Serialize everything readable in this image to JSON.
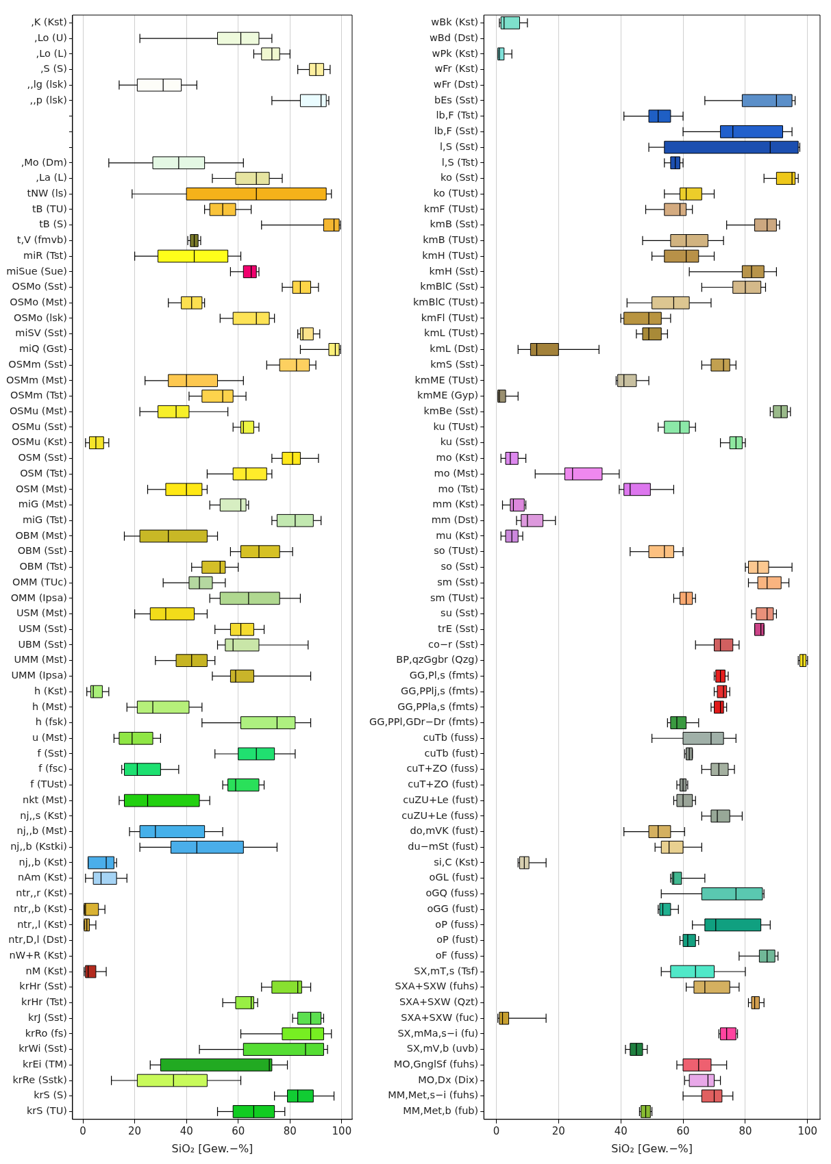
{
  "chart_data": [
    {
      "type": "box",
      "orientation": "horizontal",
      "xlabel": "SiO₂ [Gew.−%]",
      "xlim": [
        -4,
        104
      ],
      "xticks": [
        0,
        20,
        40,
        60,
        80,
        100
      ],
      "grid": "x",
      "categories": [
        ",K (Kst)",
        ",Lo (U)",
        ",Lo (L)",
        ",S (S)",
        ",,lg (lsk)",
        ",,p (lsk)",
        null,
        null,
        null,
        ",Mo (Dm)",
        ",La (L)",
        "tNW (ls)",
        "tB (TU)",
        "tB (S)",
        "t,V (fmvb)",
        "miR (Tst)",
        "miSue (Sue)",
        "OSMo (Sst)",
        "OSMo (Mst)",
        "OSMo (lsk)",
        "miSV (Sst)",
        "miQ (Gst)",
        "OSMm (Sst)",
        "OSMm (Mst)",
        "OSMm (Tst)",
        "OSMu (Mst)",
        "OSMu (Sst)",
        "OSMu (Kst)",
        "OSM (Sst)",
        "OSM (Tst)",
        "OSM (Mst)",
        "miG (Mst)",
        "miG (Tst)",
        "OBM (Mst)",
        "OBM (Sst)",
        "OBM (Tst)",
        "OMM (TUc)",
        "OMM (Ipsa)",
        "USM (Mst)",
        "USM (Sst)",
        "UBM (Sst)",
        "UMM (Mst)",
        "UMM (Ipsa)",
        "h (Kst)",
        "h (Mst)",
        "h (fsk)",
        "u (Mst)",
        "f (Sst)",
        "f (fsc)",
        "f (TUst)",
        "nkt (Mst)",
        "nj,,s (Kst)",
        "nj,,b (Mst)",
        "nj,,b (Kstki)",
        "nj,,b (Kst)",
        "nAm (Kst)",
        "ntr,,r (Kst)",
        "ntr,,b (Kst)",
        "ntr,,l (Kst)",
        "ntr,D,l (Dst)",
        "nW+R (Kst)",
        "nM (Kst)",
        "krHr (Sst)",
        "krHr (Tst)",
        "krJ (Sst)",
        "krRo (fs)",
        "krWi (Sst)",
        "krEi (TM)",
        "krRe (Sstk)",
        "krS (S)",
        "krS (TU)"
      ],
      "colors": [
        null,
        "#eefadc",
        "#f0f8d0",
        "#fdf0a0",
        "#fdfdf8",
        "#eafcff",
        null,
        null,
        null,
        "#e4f8e4",
        "#e6e4a0",
        "#f5b21a",
        "#f9c33a",
        "#f5b731",
        "#7a7a2a",
        "#ffff1a",
        "#f0006e",
        "#fdd548",
        "#fde050",
        "#fde356",
        "#fce28a",
        "#fbf07a",
        "#fdd060",
        "#fdc850",
        "#fdd34c",
        "#f7ef2a",
        "#eef542",
        "#f5e52a",
        "#ffe81a",
        "#ffec2a",
        "#ffe814",
        "#d7eec2",
        "#c2e8b0",
        "#c8b826",
        "#d6c125",
        "#d4bf28",
        "#b5d8a0",
        "#b0d890",
        "#f2dc1a",
        "#f5dc30",
        "#c9e6a8",
        "#c6b423",
        "#c9b42a",
        "#aaf07a",
        "#b6f07a",
        "#aef080",
        "#8fe645",
        "#20e070",
        "#1de070",
        "#2ae05a",
        "#22d010",
        null,
        "#45b0ea",
        "#4aaeea",
        "#4aaeea",
        "#a6d4f5",
        null,
        "#d9b233",
        "#c9a23a",
        null,
        null,
        "#b32a1e",
        "#88e030",
        "#99ee44",
        "#5ce050",
        "#77ee22",
        "#55dd33",
        "#22aa22",
        "#c8fa5a",
        "#11cc33",
        "#11cc22"
      ],
      "boxes": [
        null,
        {
          "low": 22,
          "q1": 52,
          "median": 61,
          "q3": 68,
          "high": 73
        },
        {
          "low": 66,
          "q1": 69,
          "median": 73,
          "q3": 76,
          "high": 80
        },
        {
          "low": 83,
          "q1": 87.5,
          "median": 90,
          "q3": 93,
          "high": 95.5
        },
        {
          "low": 14,
          "q1": 21,
          "median": 31,
          "q3": 38,
          "high": 44
        },
        {
          "low": 73,
          "q1": 84,
          "median": 92,
          "q3": 94,
          "high": 95
        },
        null,
        null,
        null,
        {
          "low": 10,
          "q1": 27,
          "median": 37,
          "q3": 47,
          "high": 62
        },
        {
          "low": 50,
          "q1": 59,
          "median": 67,
          "q3": 72,
          "high": 77
        },
        {
          "low": 19,
          "q1": 40,
          "median": 67,
          "q3": 94,
          "high": 96
        },
        {
          "low": 47,
          "q1": 49,
          "median": 54,
          "q3": 59,
          "high": 65
        },
        {
          "low": 69,
          "q1": 93,
          "median": 97,
          "q3": 99,
          "high": 99.5
        },
        {
          "low": 40.5,
          "q1": 41.5,
          "median": 43,
          "q3": 44.5,
          "high": 45.5
        },
        {
          "low": 20,
          "q1": 29,
          "median": 43,
          "q3": 56,
          "high": 61
        },
        {
          "low": 57,
          "q1": 62,
          "median": 65,
          "q3": 67,
          "high": 68
        },
        {
          "low": 77,
          "q1": 81,
          "median": 84,
          "q3": 88,
          "high": 91
        },
        {
          "low": 33,
          "q1": 38,
          "median": 42,
          "q3": 46,
          "high": 47
        },
        {
          "low": 53,
          "q1": 58,
          "median": 67,
          "q3": 72,
          "high": 74
        },
        {
          "low": 83,
          "q1": 84,
          "median": 85,
          "q3": 89,
          "high": 91.5
        },
        {
          "low": 84,
          "q1": 95,
          "median": 97.5,
          "q3": 99,
          "high": 99.5
        },
        {
          "low": 71,
          "q1": 76,
          "median": 82.5,
          "q3": 87.5,
          "high": 90
        },
        {
          "low": 24,
          "q1": 33,
          "median": 40,
          "q3": 52,
          "high": 62
        },
        {
          "low": 41,
          "q1": 46,
          "median": 54,
          "q3": 58,
          "high": 63
        },
        {
          "low": 22,
          "q1": 29,
          "median": 36,
          "q3": 41,
          "high": 56
        },
        {
          "low": 58,
          "q1": 61,
          "median": 62,
          "q3": 66,
          "high": 68
        },
        {
          "low": 1,
          "q1": 2.5,
          "median": 5,
          "q3": 8,
          "high": 10
        },
        {
          "low": 73,
          "q1": 77,
          "median": 81,
          "q3": 84,
          "high": 91
        },
        {
          "low": 48,
          "q1": 58,
          "median": 63,
          "q3": 71,
          "high": 73
        },
        {
          "low": 25,
          "q1": 32,
          "median": 40,
          "q3": 46,
          "high": 48
        },
        {
          "low": 49,
          "q1": 53,
          "median": 61,
          "q3": 63,
          "high": 64
        },
        {
          "low": 73,
          "q1": 75,
          "median": 82,
          "q3": 89,
          "high": 92
        },
        {
          "low": 16,
          "q1": 22,
          "median": 33,
          "q3": 48,
          "high": 52
        },
        {
          "low": 57,
          "q1": 61,
          "median": 68,
          "q3": 76,
          "high": 81
        },
        {
          "low": 42,
          "q1": 46,
          "median": 53,
          "q3": 55,
          "high": 60
        },
        {
          "low": 31,
          "q1": 41,
          "median": 45,
          "q3": 50,
          "high": 55
        },
        {
          "low": 49,
          "q1": 53,
          "median": 64,
          "q3": 76,
          "high": 84
        },
        {
          "low": 20,
          "q1": 26,
          "median": 32,
          "q3": 43,
          "high": 48
        },
        {
          "low": 51,
          "q1": 57,
          "median": 61,
          "q3": 66,
          "high": 70
        },
        {
          "low": 52,
          "q1": 55,
          "median": 58,
          "q3": 68,
          "high": 87
        },
        {
          "low": 28,
          "q1": 36,
          "median": 42,
          "q3": 48,
          "high": 51
        },
        {
          "low": 50,
          "q1": 57,
          "median": 59,
          "q3": 66,
          "high": 88
        },
        {
          "low": 1.5,
          "q1": 3,
          "median": 4,
          "q3": 7.5,
          "high": 10
        },
        {
          "low": 17,
          "q1": 21,
          "median": 27,
          "q3": 41,
          "high": 46
        },
        {
          "low": 46,
          "q1": 61,
          "median": 75,
          "q3": 82,
          "high": 88
        },
        {
          "low": 12,
          "q1": 14,
          "median": 19,
          "q3": 27,
          "high": 30
        },
        {
          "low": 51,
          "q1": 60,
          "median": 67,
          "q3": 74,
          "high": 82
        },
        {
          "low": 15,
          "q1": 16,
          "median": 21,
          "q3": 30,
          "high": 37
        },
        {
          "low": 54,
          "q1": 56,
          "median": 59,
          "q3": 68,
          "high": 70
        },
        {
          "low": 14,
          "q1": 16,
          "median": 25,
          "q3": 45,
          "high": 49
        },
        null,
        {
          "low": 18,
          "q1": 22,
          "median": 28,
          "q3": 47,
          "high": 54
        },
        {
          "low": 22,
          "q1": 34,
          "median": 44,
          "q3": 62,
          "high": 75
        },
        {
          "low": 2,
          "q1": 2,
          "median": 9,
          "q3": 12,
          "high": 13
        },
        {
          "low": 1,
          "q1": 4,
          "median": 7,
          "q3": 13,
          "high": 17
        },
        null,
        {
          "low": 0.5,
          "q1": 0.5,
          "median": 1,
          "q3": 6,
          "high": 8.5
        },
        {
          "low": 0.5,
          "q1": 0.5,
          "median": 1.5,
          "q3": 2.5,
          "high": 5
        },
        null,
        null,
        {
          "low": 0.5,
          "q1": 1,
          "median": 2,
          "q3": 5,
          "high": 9
        },
        {
          "low": 69,
          "q1": 73,
          "median": 83,
          "q3": 84.5,
          "high": 88
        },
        {
          "low": 54,
          "q1": 59,
          "median": 65,
          "q3": 66,
          "high": 67.5
        },
        {
          "low": 81,
          "q1": 83,
          "median": 88,
          "q3": 92,
          "high": 93
        },
        {
          "low": 61,
          "q1": 77,
          "median": 88,
          "q3": 93,
          "high": 96
        },
        {
          "low": 45,
          "q1": 62,
          "median": 86,
          "q3": 93,
          "high": 94.5
        },
        {
          "low": 26,
          "q1": 30,
          "median": 72,
          "q3": 73,
          "high": 79
        },
        {
          "low": 11,
          "q1": 21,
          "median": 35,
          "q3": 48,
          "high": 61
        },
        {
          "low": 74,
          "q1": 79,
          "median": 83,
          "q3": 89,
          "high": 97
        },
        {
          "low": 52,
          "q1": 58,
          "median": 66,
          "q3": 74,
          "high": 78
        }
      ]
    },
    {
      "type": "box",
      "orientation": "horizontal",
      "xlabel": "SiO₂ [Gew.−%]",
      "xlim": [
        -4,
        104
      ],
      "xticks": [
        0,
        20,
        40,
        60,
        80,
        100
      ],
      "grid": "x",
      "categories": [
        "wBk (Kst)",
        "wBd (Dst)",
        "wPk (Kst)",
        "wFr (Kst)",
        "wFr (Dst)",
        "bEs (Sst)",
        "lb,F (Tst)",
        "lb,F (Sst)",
        "l,S (Sst)",
        "l,S (Tst)",
        "ko (Sst)",
        "ko (TUst)",
        "kmF (TUst)",
        "kmB (Sst)",
        "kmB (TUst)",
        "kmH (TUst)",
        "kmH (Sst)",
        "kmBlC (Sst)",
        "kmBlC (TUst)",
        "kmFl (TUst)",
        "kmL (TUst)",
        "kmL (Dst)",
        "kmS (Sst)",
        "kmME (TUst)",
        "kmME (Gyp)",
        "kmBe (Sst)",
        "ku (TUst)",
        "ku (Sst)",
        "mo (Kst)",
        "mo (Mst)",
        "mo (Tst)",
        "mm (Kst)",
        "mm (Dst)",
        "mu (Kst)",
        "so (TUst)",
        "so (Sst)",
        "sm (Sst)",
        "sm (TUst)",
        "su (Sst)",
        "trE (Sst)",
        "co−r (Sst)",
        "BP,qzGgbr (Qzg)",
        "GG,Pl,s (fmts)",
        "GG,PPlj,s (fmts)",
        "GG,PPla,s (fmts)",
        "GG,PPl,GDr−Dr (fmts)",
        "cuTb (fuss)",
        "cuTb (fust)",
        "cuT+ZO (fuss)",
        "cuT+ZO (fust)",
        "cuZU+Le (fust)",
        "cuZU+Le (fuss)",
        "do,mVK (fust)",
        "du−mSt (fust)",
        "si,C (Kst)",
        "oGL (fust)",
        "oGQ (fuss)",
        "oGG (fust)",
        "oP (fuss)",
        "oP (fust)",
        "oF (fuss)",
        "SX,mT,s (Tsf)",
        "SXA+SXW (fuhs)",
        "SXA+SXW (Qzt)",
        "SXA+SXW (fuc)",
        "SX,mMa,s−i (fu)",
        "SX,mV,b (uvb)",
        "MO,GnglSf (fuhs)",
        "MO,Dx (Dix)",
        "MM,Met,s−i (fuhs)",
        "MM,Met,b (fub)"
      ],
      "colors": [
        "#7ee0cc",
        null,
        "#7ee0d8",
        null,
        null,
        "#5b8fc9",
        "#1f5fc4",
        "#2260cc",
        "#1c4fb0",
        "#1c4fb0",
        "#eec81a",
        "#eccd2a",
        "#d4ab80",
        "#cca880",
        "#d1b380",
        "#b89148",
        "#b8944a",
        "#d4b98a",
        "#dcc691",
        "#b89440",
        "#a88a38",
        "#a3823a",
        "#c2a050",
        "#c8c0a0",
        "#9a9070",
        "#9aba8a",
        "#8ce8a8",
        "#8ee8a0",
        "#dd88ee",
        "#ee88ee",
        "#dd77ee",
        "#dd88dd",
        "#dd99dd",
        "#cc88dd",
        "#fcc080",
        "#fcc890",
        "#f9b480",
        "#f8a870",
        "#e8907a",
        "#cc4488",
        "#d06060",
        "#f7e020",
        "#e82020",
        "#e83030",
        "#e01a1a",
        "#3a9a40",
        "#a0b0a8",
        "#909890",
        "#a4b0a0",
        "#909890",
        "#9aa498",
        "#98a898",
        "#d4b060",
        "#e8d090",
        "#d8d0b0",
        "#40b890",
        "#5ac8b0",
        "#20b090",
        "#10a080",
        "#14a080",
        "#70b898",
        "#50e8c8",
        "#d4b060",
        "#d4a050",
        "#c8a030",
        "#ff44a0",
        "#208040",
        "#ee6070",
        "#e8a8e8",
        "#e06060",
        "#88bb33"
      ],
      "boxes": [
        {
          "low": 1,
          "q1": 1.5,
          "median": 2.5,
          "q3": 7.5,
          "high": 10
        },
        null,
        {
          "low": 0.5,
          "q1": 0.5,
          "median": 1,
          "q3": 2.5,
          "high": 5
        },
        null,
        null,
        {
          "low": 67,
          "q1": 79,
          "median": 90,
          "q3": 95,
          "high": 96
        },
        {
          "low": 41,
          "q1": 49,
          "median": 52,
          "q3": 56,
          "high": 60
        },
        {
          "low": 60,
          "q1": 72,
          "median": 76,
          "q3": 92,
          "high": 95
        },
        {
          "low": 49,
          "q1": 54,
          "median": 88,
          "q3": 97,
          "high": 97.5
        },
        {
          "low": 54,
          "q1": 56,
          "median": 57.5,
          "q3": 59,
          "high": 60
        },
        {
          "low": 86,
          "q1": 90,
          "median": 95,
          "q3": 96,
          "high": 97
        },
        {
          "low": 54,
          "q1": 59,
          "median": 61,
          "q3": 66,
          "high": 70
        },
        {
          "low": 48,
          "q1": 54,
          "median": 59,
          "q3": 61,
          "high": 63
        },
        {
          "low": 74,
          "q1": 83,
          "median": 87,
          "q3": 90,
          "high": 91
        },
        {
          "low": 47,
          "q1": 56,
          "median": 61,
          "q3": 68,
          "high": 73
        },
        {
          "low": 50,
          "q1": 54,
          "median": 61,
          "q3": 65,
          "high": 70
        },
        {
          "low": 62,
          "q1": 79,
          "median": 82,
          "q3": 86,
          "high": 90
        },
        {
          "low": 66,
          "q1": 76,
          "median": 80,
          "q3": 85,
          "high": 86.5
        },
        {
          "low": 42,
          "q1": 50,
          "median": 57,
          "q3": 62,
          "high": 69
        },
        {
          "low": 40,
          "q1": 41,
          "median": 49,
          "q3": 53,
          "high": 56
        },
        {
          "low": 45,
          "q1": 47,
          "median": 49,
          "q3": 53,
          "high": 55
        },
        {
          "low": 7,
          "q1": 11,
          "median": 13,
          "q3": 20,
          "high": 33
        },
        {
          "low": 66,
          "q1": 69,
          "median": 73,
          "q3": 75,
          "high": 77
        },
        {
          "low": 38.5,
          "q1": 39,
          "median": 41,
          "q3": 45,
          "high": 49
        },
        {
          "low": 0.5,
          "q1": 0.5,
          "median": 1,
          "q3": 3,
          "high": 7
        },
        {
          "low": 88,
          "q1": 89,
          "median": 91.5,
          "q3": 93.5,
          "high": 94.5
        },
        {
          "low": 52,
          "q1": 54,
          "median": 59,
          "q3": 62,
          "high": 64
        },
        {
          "low": 72,
          "q1": 75,
          "median": 77,
          "q3": 79,
          "high": 80
        },
        {
          "low": 1.5,
          "q1": 3,
          "median": 4.5,
          "q3": 7,
          "high": 9.5
        },
        {
          "low": 12.5,
          "q1": 22,
          "median": 24.5,
          "q3": 34,
          "high": 39.5
        },
        {
          "low": 39.5,
          "q1": 41,
          "median": 43,
          "q3": 49.5,
          "high": 57
        },
        {
          "low": 2,
          "q1": 4.5,
          "median": 5.5,
          "q3": 9,
          "high": 9.5
        },
        {
          "low": 6.5,
          "q1": 8,
          "median": 10,
          "q3": 15,
          "high": 19
        },
        {
          "low": 1.5,
          "q1": 3,
          "median": 5,
          "q3": 7,
          "high": 8.5
        },
        {
          "low": 43,
          "q1": 49,
          "median": 54,
          "q3": 57,
          "high": 60
        },
        {
          "low": 80,
          "q1": 81,
          "median": 84,
          "q3": 87.5,
          "high": 95
        },
        {
          "low": 81,
          "q1": 84,
          "median": 87,
          "q3": 91.5,
          "high": 94
        },
        {
          "low": 57,
          "q1": 59,
          "median": 61,
          "q3": 63,
          "high": 64
        },
        {
          "low": 82,
          "q1": 83.5,
          "median": 87,
          "q3": 89,
          "high": 90
        },
        {
          "low": 83,
          "q1": 83,
          "median": 85,
          "q3": 86,
          "high": 86
        },
        {
          "low": 64,
          "q1": 70,
          "median": 72,
          "q3": 76,
          "high": 78
        },
        {
          "low": 97,
          "q1": 97.5,
          "median": 98.5,
          "q3": 99.5,
          "high": 100
        },
        {
          "low": 70,
          "q1": 70.5,
          "median": 72,
          "q3": 73.5,
          "high": 74.5
        },
        {
          "low": 70,
          "q1": 71,
          "median": 73,
          "q3": 74,
          "high": 75
        },
        {
          "low": 69,
          "q1": 70,
          "median": 72,
          "q3": 73,
          "high": 74
        },
        {
          "low": 55,
          "q1": 56,
          "median": 58,
          "q3": 61,
          "high": 65
        },
        {
          "low": 50,
          "q1": 60,
          "median": 69,
          "q3": 73,
          "high": 77
        },
        {
          "low": 60.5,
          "q1": 61,
          "median": 62,
          "q3": 63,
          "high": 63
        },
        {
          "low": 66,
          "q1": 69,
          "median": 71.5,
          "q3": 74.5,
          "high": 76.5
        },
        {
          "low": 58,
          "q1": 59,
          "median": 60,
          "q3": 61,
          "high": 61.5
        },
        {
          "low": 57,
          "q1": 58,
          "median": 60,
          "q3": 63,
          "high": 64
        },
        {
          "low": 66,
          "q1": 69,
          "median": 71,
          "q3": 75,
          "high": 79
        },
        {
          "low": 41,
          "q1": 49,
          "median": 52,
          "q3": 56,
          "high": 60.5
        },
        {
          "low": 51,
          "q1": 53,
          "median": 55.5,
          "q3": 60,
          "high": 66
        },
        {
          "low": 7,
          "q1": 7.5,
          "median": 9,
          "q3": 10.5,
          "high": 16
        },
        {
          "low": 56,
          "q1": 56.5,
          "median": 57,
          "q3": 59.5,
          "high": 67
        },
        {
          "low": 53,
          "q1": 66,
          "median": 77,
          "q3": 85.5,
          "high": 86
        },
        {
          "low": 52,
          "q1": 52.5,
          "median": 53.5,
          "q3": 56,
          "high": 58.5
        },
        {
          "low": 63,
          "q1": 67,
          "median": 70.5,
          "q3": 85,
          "high": 88
        },
        {
          "low": 59,
          "q1": 60,
          "median": 61.5,
          "q3": 64,
          "high": 65
        },
        {
          "low": 78,
          "q1": 84.5,
          "median": 87,
          "q3": 89.5,
          "high": 90.5
        },
        {
          "low": 53,
          "q1": 56,
          "median": 64,
          "q3": 70,
          "high": 80
        },
        {
          "low": 61,
          "q1": 63.5,
          "median": 67,
          "q3": 75,
          "high": 78
        },
        {
          "low": 81,
          "q1": 82,
          "median": 83,
          "q3": 84.5,
          "high": 86
        },
        {
          "low": 0.5,
          "q1": 1,
          "median": 2,
          "q3": 4,
          "high": 16
        },
        {
          "low": 71.5,
          "q1": 72,
          "median": 74,
          "q3": 77,
          "high": 77.5
        },
        {
          "low": 41.5,
          "q1": 43,
          "median": 45,
          "q3": 47,
          "high": 48.5
        },
        {
          "low": 58,
          "q1": 60,
          "median": 65,
          "q3": 69,
          "high": 74
        },
        {
          "low": 60.5,
          "q1": 62,
          "median": 68,
          "q3": 70,
          "high": 72
        },
        {
          "low": 60,
          "q1": 66,
          "median": 70,
          "q3": 72.5,
          "high": 76
        },
        {
          "low": 46,
          "q1": 46.5,
          "median": 48,
          "q3": 49.5,
          "high": 50
        }
      ]
    }
  ]
}
